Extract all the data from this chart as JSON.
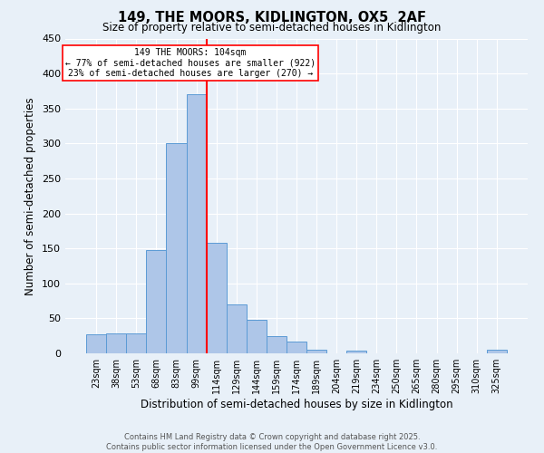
{
  "title": "149, THE MOORS, KIDLINGTON, OX5  2AF",
  "subtitle": "Size of property relative to semi-detached houses in Kidlington",
  "xlabel": "Distribution of semi-detached houses by size in Kidlington",
  "ylabel": "Number of semi-detached properties",
  "categories": [
    "23sqm",
    "38sqm",
    "53sqm",
    "68sqm",
    "83sqm",
    "99sqm",
    "114sqm",
    "129sqm",
    "144sqm",
    "159sqm",
    "174sqm",
    "189sqm",
    "204sqm",
    "219sqm",
    "234sqm",
    "250sqm",
    "265sqm",
    "280sqm",
    "295sqm",
    "310sqm",
    "325sqm"
  ],
  "values": [
    27,
    29,
    29,
    147,
    300,
    370,
    158,
    70,
    48,
    25,
    17,
    5,
    0,
    4,
    0,
    0,
    0,
    0,
    0,
    0,
    5
  ],
  "bar_color": "#aec6e8",
  "bar_edgecolor": "#5b9bd5",
  "ylim": [
    0,
    450
  ],
  "yticks": [
    0,
    50,
    100,
    150,
    200,
    250,
    300,
    350,
    400,
    450
  ],
  "vline_x": 5.5,
  "box_text_line1": "149 THE MOORS: 104sqm",
  "box_text_line2": "← 77% of semi-detached houses are smaller (922)",
  "box_text_line3": "23% of semi-detached houses are larger (270) →",
  "footer1": "Contains HM Land Registry data © Crown copyright and database right 2025.",
  "footer2": "Contains public sector information licensed under the Open Government Licence v3.0.",
  "background_color": "#e8f0f8",
  "grid_color": "#ffffff"
}
